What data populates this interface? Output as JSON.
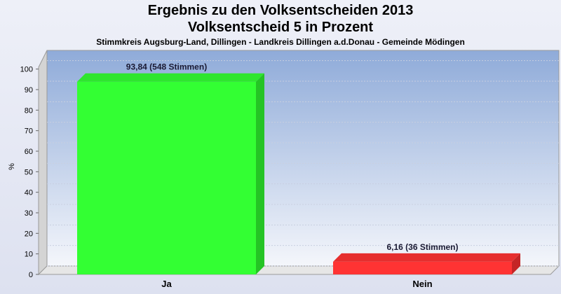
{
  "title_line1": "Ergebnis zu den Volksentscheiden 2013",
  "title_line2": "Volksentscheid 5 in Prozent",
  "subtitle": "Stimmkreis Augsburg-Land, Dillingen - Landkreis Dillingen a.d.Donau - Gemeinde Mödingen",
  "colors": {
    "ja": "#33ff33",
    "nein": "#ff3333",
    "plot_top": "#8fabd9",
    "plot_bottom": "#f4f6fb"
  },
  "chart_data": {
    "type": "bar",
    "title": "Ergebnis zu den Volksentscheiden 2013",
    "subtitle": "Volksentscheid 5 in Prozent",
    "ylabel": "%",
    "xlabel": "",
    "ylim": [
      0,
      105
    ],
    "yticks": [
      0,
      10,
      20,
      30,
      40,
      50,
      60,
      70,
      80,
      90,
      100
    ],
    "categories": [
      "Ja",
      "Nein"
    ],
    "values": [
      93.84,
      6.16
    ],
    "data_labels": [
      "93,84 (548 Stimmen)",
      "6,16 (36 Stimmen)"
    ],
    "grid": true,
    "legend": "none"
  }
}
